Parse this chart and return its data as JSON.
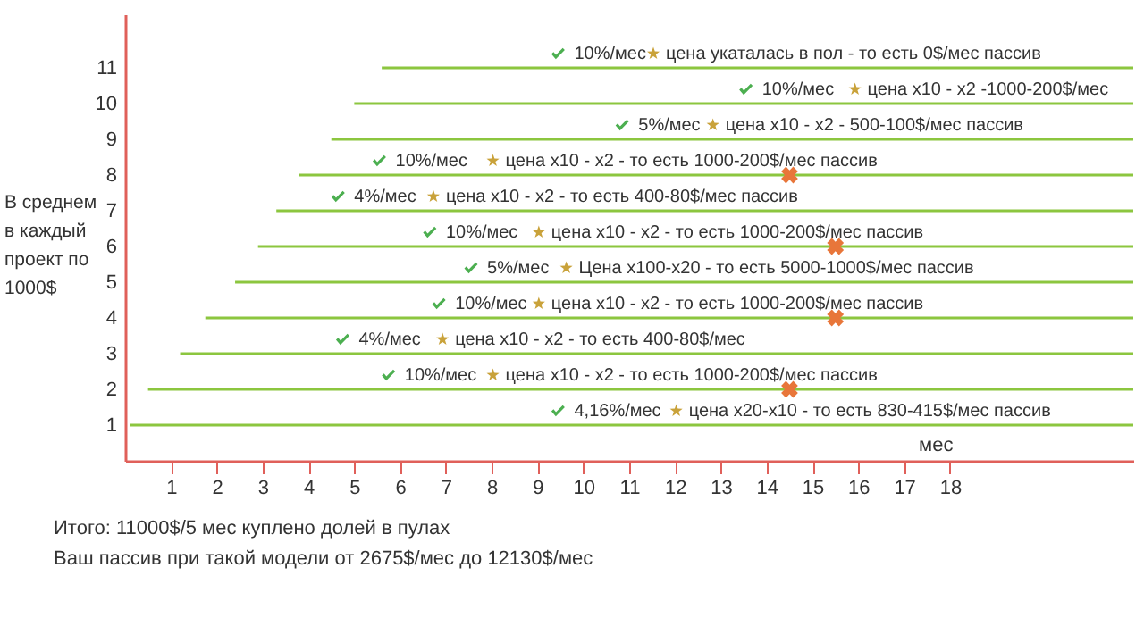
{
  "chart_data": {
    "type": "line",
    "xlabel": "мес",
    "ylabel": "В среднем в каждый проект по 1000$",
    "series": [
      {
        "color": "#8cc63f",
        "x": [
          5.6,
          22
        ],
        "values": [
          11,
          11
        ]
      },
      {
        "color": "#8cc63f",
        "x": [
          5.0,
          22
        ],
        "values": [
          10,
          10
        ]
      },
      {
        "color": "#8cc63f",
        "x": [
          4.5,
          22
        ],
        "values": [
          9,
          9
        ]
      },
      {
        "color": "#8cc63f",
        "x": [
          3.8,
          22
        ],
        "values": [
          8,
          8
        ]
      },
      {
        "color": "#8cc63f",
        "x": [
          3.3,
          22
        ],
        "values": [
          7,
          7
        ]
      },
      {
        "color": "#8cc63f",
        "x": [
          2.9,
          22
        ],
        "values": [
          6,
          6
        ]
      },
      {
        "color": "#8cc63f",
        "x": [
          2.4,
          22
        ],
        "values": [
          5,
          5
        ]
      },
      {
        "color": "#8cc63f",
        "x": [
          1.75,
          22
        ],
        "values": [
          4,
          4
        ]
      },
      {
        "color": "#8cc63f",
        "x": [
          1.2,
          22
        ],
        "values": [
          3,
          3
        ]
      },
      {
        "color": "#8cc63f",
        "x": [
          0.5,
          22
        ],
        "values": [
          2,
          2
        ]
      },
      {
        "color": "#8cc63f",
        "x": [
          0.1,
          22
        ],
        "values": [
          1,
          1
        ]
      },
      {
        "type": "scatter",
        "color": "#e8763a",
        "marker": "cross",
        "x": [
          14.5,
          15.5,
          15.5,
          14.5
        ],
        "values": [
          8,
          6,
          4,
          2
        ]
      }
    ],
    "xlim": [
      0,
      22
    ],
    "xticks": [
      1,
      2,
      3,
      4,
      5,
      6,
      7,
      8,
      9,
      10,
      11,
      12,
      13,
      14,
      15,
      16,
      17,
      18
    ],
    "ylim": [
      0,
      12.5
    ],
    "yticks": [
      1,
      2,
      3,
      4,
      5,
      6,
      7,
      8,
      9,
      10,
      11
    ],
    "annotations": [
      {
        "text": "10%/мес",
        "x": 9.8,
        "y": 11
      },
      {
        "text": "цена укаталась в пол - то есть 0$/мес пассив",
        "x": 11.8,
        "y": 11
      },
      {
        "text": "10%/мес",
        "x": 13.9,
        "y": 10
      },
      {
        "text": "цена x10 - x2 -1000-200$/мес",
        "x": 16.2,
        "y": 10
      },
      {
        "text": "5%/мес",
        "x": 11.2,
        "y": 9
      },
      {
        "text": "цена x10 - x2  - 500-100$/мес пассив",
        "x": 13.1,
        "y": 9
      },
      {
        "text": "10%/мес",
        "x": 5.9,
        "y": 8
      },
      {
        "text": "цена x10 - x2  - то есть 1000-200$/мес пассив",
        "x": 8.3,
        "y": 8
      },
      {
        "text": "4%/мес",
        "x": 5.0,
        "y": 7
      },
      {
        "text": "цена x10 - x2  - то есть 400-80$/мес пассив",
        "x": 7.0,
        "y": 7
      },
      {
        "text": "10%/мес",
        "x": 7.0,
        "y": 6
      },
      {
        "text": "цена x10 - x2  - то есть 1000-200$/мес пассив",
        "x": 9.3,
        "y": 6
      },
      {
        "text": "5%/мес",
        "x": 7.9,
        "y": 5
      },
      {
        "text": "Цена x100-x20  - то есть 5000-1000$/мес пассив",
        "x": 9.9,
        "y": 5
      },
      {
        "text": "10%/мес",
        "x": 7.2,
        "y": 4
      },
      {
        "text": "цена x10 - x2  - то есть 1000-200$/мес пассив",
        "x": 9.3,
        "y": 4
      },
      {
        "text": "4%/мес",
        "x": 5.1,
        "y": 3
      },
      {
        "text": "цена x10 - x2  - то есть 400-80$/мес",
        "x": 7.2,
        "y": 3
      },
      {
        "text": "10%/мес",
        "x": 6.1,
        "y": 2
      },
      {
        "text": "цена x10 - x2  - то есть 1000-200$/мес пассив",
        "x": 8.3,
        "y": 2
      },
      {
        "text": "4,16%/мес",
        "x": 9.8,
        "y": 1
      },
      {
        "text": "цена x20-x10  - то есть 830-415$/мес пассив",
        "x": 12.3,
        "y": 1
      },
      "Итого: 11000$/5 мес куплено долей в пулах",
      "Ваш пассив при такой модели от 2675$/мес до 12130$/мес"
    ]
  }
}
